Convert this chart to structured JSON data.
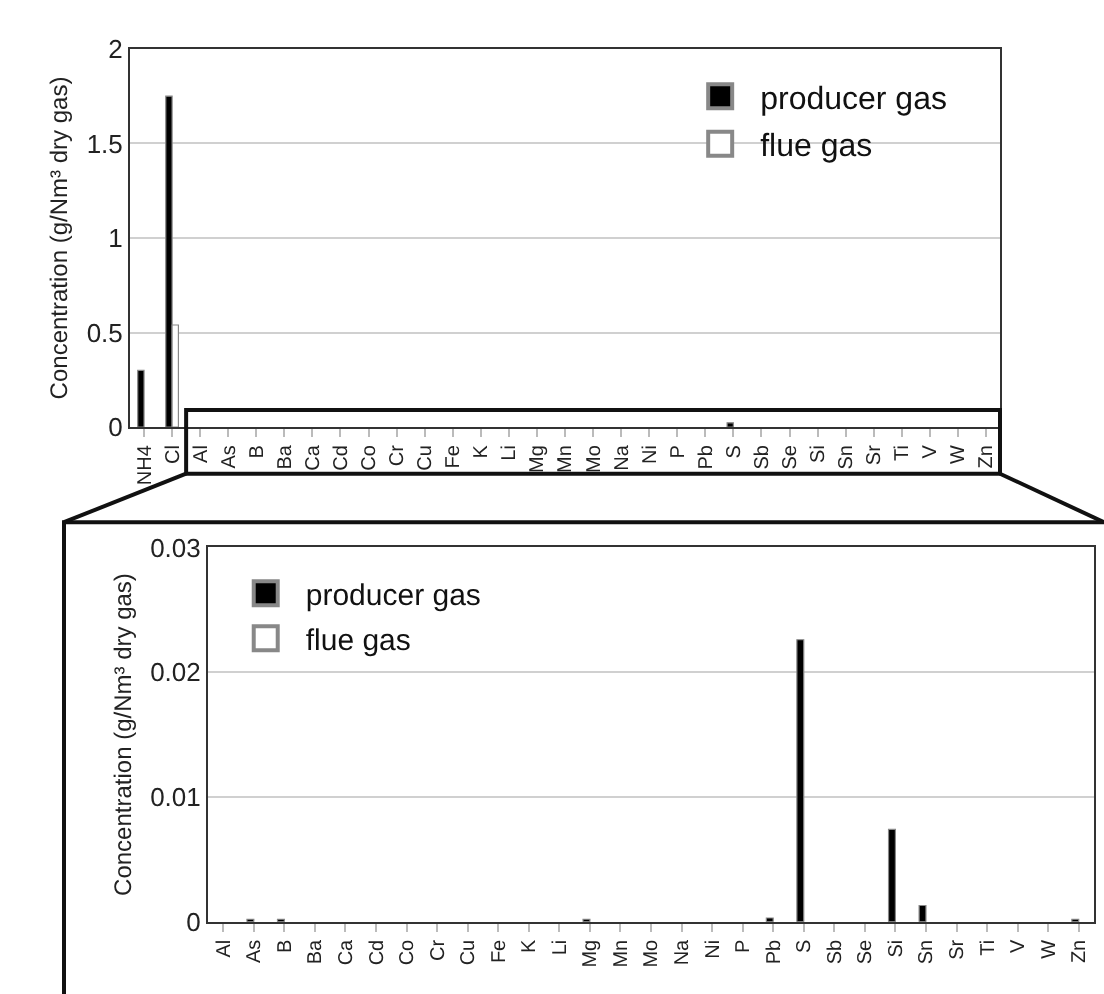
{
  "chart_data": [
    {
      "type": "bar",
      "ylabel": "Concentration (g/Nm³ dry gas)",
      "categories": [
        "NH4",
        "Cl",
        "Al",
        "As",
        "B",
        "Ba",
        "Ca",
        "Cd",
        "Co",
        "Cr",
        "Cu",
        "Fe",
        "K",
        "Li",
        "Mg",
        "Mn",
        "Mo",
        "Na",
        "Ni",
        "P",
        "Pb",
        "S",
        "Sb",
        "Se",
        "Si",
        "Sn",
        "Sr",
        "Ti",
        "V",
        "W",
        "Zn"
      ],
      "series": [
        {
          "name": "producer gas",
          "color": "#000000",
          "values": [
            0.3,
            1.75,
            0,
            0,
            0,
            0,
            0,
            0,
            0,
            0,
            0,
            0,
            0,
            0,
            0,
            0,
            0,
            0,
            0,
            0,
            0,
            0.023,
            0,
            0,
            0,
            0,
            0,
            0,
            0,
            0,
            0
          ]
        },
        {
          "name": "flue gas",
          "color": "#ffffff",
          "values": [
            0,
            0.54,
            0,
            0,
            0,
            0,
            0,
            0,
            0,
            0,
            0,
            0,
            0,
            0,
            0,
            0,
            0,
            0,
            0,
            0,
            0,
            0,
            0,
            0,
            0,
            0,
            0,
            0,
            0,
            0,
            0
          ]
        }
      ],
      "ylim": [
        0,
        2
      ],
      "yticks": [
        0,
        0.5,
        1,
        1.5,
        2
      ],
      "grid": "y",
      "legend": "top right"
    },
    {
      "type": "bar",
      "ylabel": "Concentration (g/Nm³ dry gas)",
      "categories": [
        "Al",
        "As",
        "B",
        "Ba",
        "Ca",
        "Cd",
        "Co",
        "Cr",
        "Cu",
        "Fe",
        "K",
        "Li",
        "Mg",
        "Mn",
        "Mo",
        "Na",
        "Ni",
        "P",
        "Pb",
        "S",
        "Sb",
        "Se",
        "Si",
        "Sn",
        "Sr",
        "Ti",
        "V",
        "W",
        "Zn"
      ],
      "series": [
        {
          "name": "producer gas",
          "color": "#000000",
          "values": [
            0,
            0.0002,
            0.0002,
            0,
            0,
            0,
            0,
            0,
            0,
            0,
            0,
            0,
            0.0002,
            0,
            0,
            0,
            0,
            0,
            0.0003,
            0.0226,
            0,
            0,
            0.0074,
            0.0013,
            0,
            0,
            0,
            0,
            0.0002
          ]
        },
        {
          "name": "flue gas",
          "color": "#ffffff",
          "values": [
            0,
            0,
            0,
            0,
            0,
            0,
            0,
            0,
            0,
            0,
            0,
            0,
            0,
            0,
            0,
            0,
            0,
            0,
            0,
            0,
            0,
            0,
            0,
            0,
            0,
            0,
            0,
            0,
            0
          ]
        }
      ],
      "ylim": [
        0,
        0.03
      ],
      "yticks": [
        0,
        0.01,
        0.02,
        0.03
      ],
      "grid": "y",
      "legend": "top left"
    }
  ]
}
